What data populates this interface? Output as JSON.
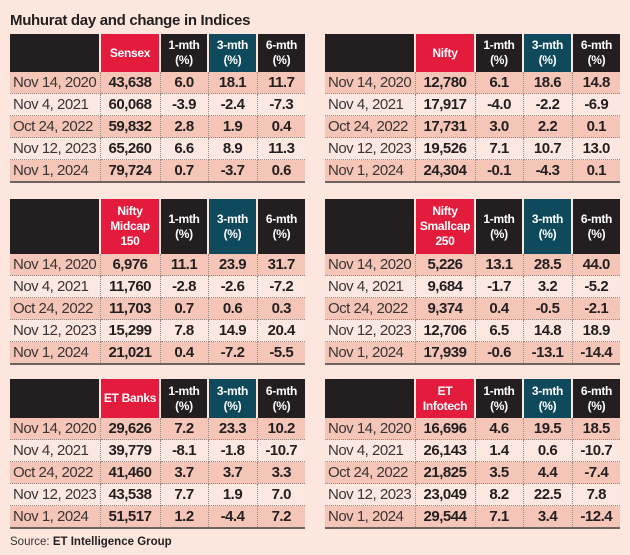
{
  "title": "Muhurat day and change in Indices",
  "columns": [
    "1-mth (%)",
    "3-mth (%)",
    "6-mth (%)"
  ],
  "colors": {
    "background": "#fce6dd",
    "header_dark": "#231f20",
    "index_header": "#e31b3c",
    "three_month_header": "#0e4a5b",
    "row_shaded": "#f5c6b8",
    "row_light": "#fce8e0"
  },
  "tables": [
    {
      "index": "Sensex",
      "rows": [
        [
          "Nov 14, 2020",
          "43,638",
          "6.0",
          "18.1",
          "11.7"
        ],
        [
          "Nov 4, 2021",
          "60,068",
          "-3.9",
          "-2.4",
          "-7.3"
        ],
        [
          "Oct 24, 2022",
          "59,832",
          "2.8",
          "1.9",
          "0.4"
        ],
        [
          "Nov 12, 2023",
          "65,260",
          "6.6",
          "8.9",
          "11.3"
        ],
        [
          "Nov 1, 2024",
          "79,724",
          "0.7",
          "-3.7",
          "0.6"
        ]
      ]
    },
    {
      "index": "Nifty",
      "rows": [
        [
          "Nov 14, 2020",
          "12,780",
          "6.1",
          "18.6",
          "14.8"
        ],
        [
          "Nov 4, 2021",
          "17,917",
          "-4.0",
          "-2.2",
          "-6.9"
        ],
        [
          "Oct 24, 2022",
          "17,731",
          "3.0",
          "2.2",
          "0.1"
        ],
        [
          "Nov 12, 2023",
          "19,526",
          "7.1",
          "10.7",
          "13.0"
        ],
        [
          "Nov 1, 2024",
          "24,304",
          "-0.1",
          "-4.3",
          "0.1"
        ]
      ]
    },
    {
      "index": "Nifty Midcap 150",
      "rows": [
        [
          "Nov 14, 2020",
          "6,976",
          "11.1",
          "23.9",
          "31.7"
        ],
        [
          "Nov 4, 2021",
          "11,760",
          "-2.8",
          "-2.6",
          "-7.2"
        ],
        [
          "Oct 24, 2022",
          "11,703",
          "0.7",
          "0.6",
          "0.3"
        ],
        [
          "Nov 12, 2023",
          "15,299",
          "7.8",
          "14.9",
          "20.4"
        ],
        [
          "Nov 1, 2024",
          "21,021",
          "0.4",
          "-7.2",
          "-5.5"
        ]
      ]
    },
    {
      "index": "Nifty Smallcap 250",
      "rows": [
        [
          "Nov 14, 2020",
          "5,226",
          "13.1",
          "28.5",
          "44.0"
        ],
        [
          "Nov 4, 2021",
          "9,684",
          "-1.7",
          "3.2",
          "-5.2"
        ],
        [
          "Oct 24, 2022",
          "9,374",
          "0.4",
          "-0.5",
          "-2.1"
        ],
        [
          "Nov 12, 2023",
          "12,706",
          "6.5",
          "14.8",
          "18.9"
        ],
        [
          "Nov 1, 2024",
          "17,939",
          "-0.6",
          "-13.1",
          "-14.4"
        ]
      ]
    },
    {
      "index": "ET Banks",
      "rows": [
        [
          "Nov 14, 2020",
          "29,626",
          "7.2",
          "23.3",
          "10.2"
        ],
        [
          "Nov 4, 2021",
          "39,779",
          "-8.1",
          "-1.8",
          "-10.7"
        ],
        [
          "Oct 24, 2022",
          "41,460",
          "3.7",
          "3.7",
          "3.3"
        ],
        [
          "Nov 12, 2023",
          "43,538",
          "7.7",
          "1.9",
          "7.0"
        ],
        [
          "Nov 1, 2024",
          "51,517",
          "1.2",
          "-4.4",
          "7.2"
        ]
      ]
    },
    {
      "index": "ET Infotech",
      "rows": [
        [
          "Nov 14, 2020",
          "16,696",
          "4.6",
          "19.5",
          "18.5"
        ],
        [
          "Nov 4, 2021",
          "26,143",
          "1.4",
          "0.6",
          "-10.7"
        ],
        [
          "Oct 24, 2022",
          "21,825",
          "3.5",
          "4.4",
          "-7.4"
        ],
        [
          "Nov 12, 2023",
          "23,049",
          "8.2",
          "22.5",
          "7.8"
        ],
        [
          "Nov 1, 2024",
          "29,544",
          "7.1",
          "3.4",
          "-12.4"
        ]
      ]
    }
  ],
  "source": {
    "label": "Source:",
    "text": "ET Intelligence Group"
  }
}
